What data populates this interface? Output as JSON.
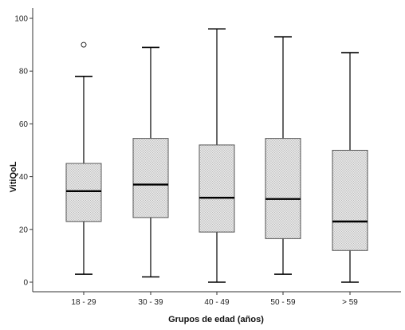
{
  "chart_data": {
    "type": "boxplot",
    "xlabel": "Grupos de edad (años)",
    "ylabel": "VitiQoL",
    "ylim": [
      0,
      100
    ],
    "yticks": [
      0,
      20,
      40,
      60,
      80,
      100
    ],
    "grid": false,
    "categories": [
      "18 - 29",
      "30 - 39",
      "40 - 49",
      "50 - 59",
      "> 59"
    ],
    "boxes": [
      {
        "min": 3,
        "q1": 23,
        "median": 34.5,
        "q3": 45,
        "max": 78,
        "outliers": [
          90
        ]
      },
      {
        "min": 2,
        "q1": 24.5,
        "median": 37,
        "q3": 54.5,
        "max": 89,
        "outliers": []
      },
      {
        "min": 0,
        "q1": 19,
        "median": 32,
        "q3": 52,
        "max": 96,
        "outliers": []
      },
      {
        "min": 3,
        "q1": 16.5,
        "median": 31.5,
        "q3": 54.5,
        "max": 93,
        "outliers": []
      },
      {
        "min": 0,
        "q1": 12,
        "median": 23,
        "q3": 50,
        "max": 87,
        "outliers": []
      }
    ],
    "colors": {
      "box_fill": "#d9d9d9",
      "box_stroke": "#555555",
      "median": "#000000",
      "whisker": "#000000"
    }
  }
}
